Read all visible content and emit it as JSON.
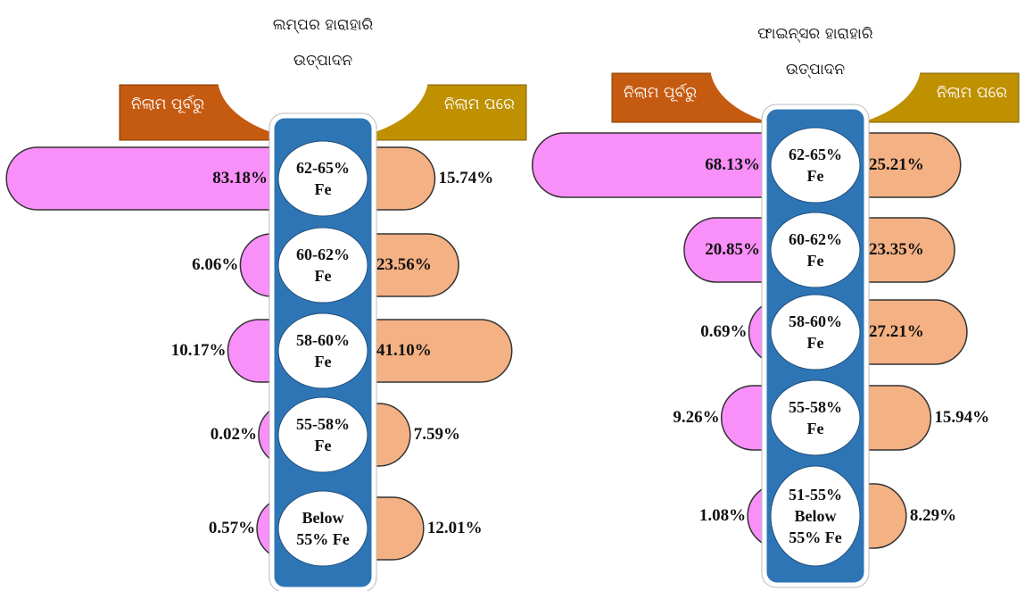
{
  "chart_data": [
    {
      "type": "butterfly",
      "title": "ଲମ୍ପର ହାରାହାରି ଉତ୍ପାଦନ",
      "categories": [
        "62-65% Fe",
        "60-62% Fe",
        "58-60% Fe",
        "55-58% Fe",
        "Below 55% Fe"
      ],
      "series": [
        {
          "name": "ନିଲାମ ପୂର୍ବରୁ",
          "color": "#f98ff9",
          "header_color": "#c55a11",
          "values": [
            83.18,
            6.06,
            10.17,
            0.02,
            0.57
          ],
          "value_labels": [
            "83.18%",
            "6.06%",
            "10.17%",
            "0.02%",
            "0.57%"
          ]
        },
        {
          "name": "ନିଲାମ ପରେ",
          "color": "#f4b183",
          "header_color": "#bf9000",
          "values": [
            15.74,
            23.56,
            41.1,
            7.59,
            12.01
          ],
          "value_labels": [
            "15.74%",
            "23.56%",
            "41.10%",
            "7.59%",
            "12.01%"
          ]
        }
      ]
    },
    {
      "type": "butterfly",
      "title": "ଫାଇନ୍ସର ହାରାହାରି ଉତ୍ପାଦନ",
      "categories": [
        "62-65% Fe",
        "60-62% Fe",
        "58-60% Fe",
        "55-58% Fe",
        "51-55% Below 55% Fe"
      ],
      "series": [
        {
          "name": "ନିଲାମ ପୂର୍ବରୁ",
          "color": "#f98ff9",
          "header_color": "#c55a11",
          "values": [
            68.13,
            20.85,
            0.69,
            9.26,
            1.08
          ],
          "value_labels": [
            "68.13%",
            "20.85%",
            "0.69%",
            "9.26%",
            "1.08%"
          ]
        },
        {
          "name": "ନିଲାମ ପରେ",
          "color": "#f4b183",
          "header_color": "#bf9000",
          "values": [
            25.21,
            23.35,
            27.21,
            15.94,
            8.29
          ],
          "value_labels": [
            "25.21%",
            "23.35%",
            "27.21%",
            "15.94%",
            "8.29%"
          ]
        }
      ]
    }
  ]
}
